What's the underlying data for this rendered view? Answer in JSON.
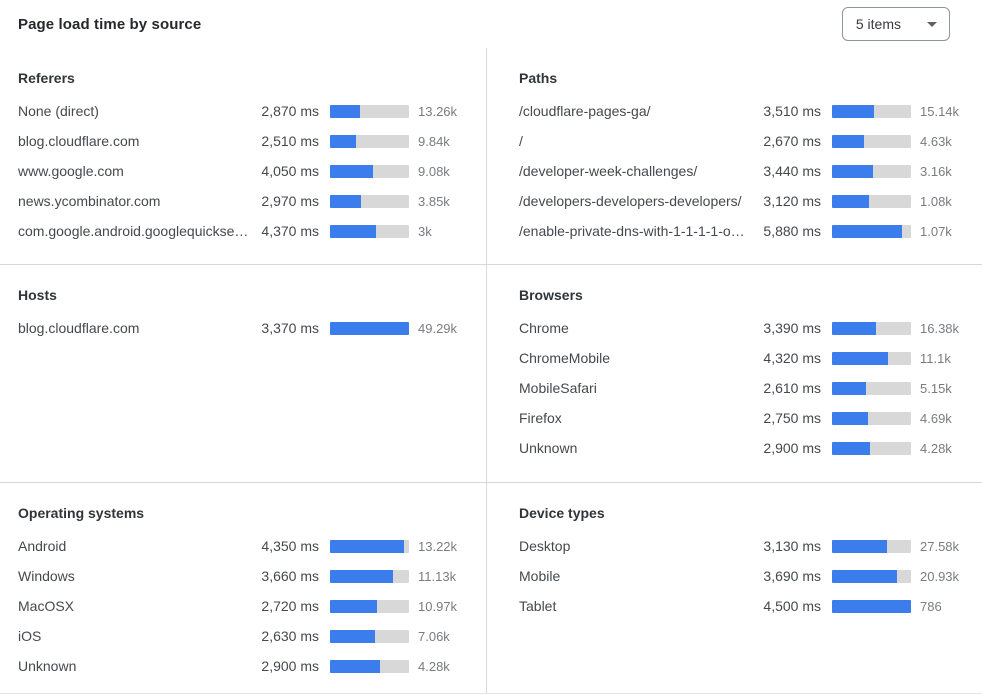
{
  "header": {
    "title": "Page load time by source",
    "items_selector": {
      "label": "5 items",
      "icon": "chevron-down"
    }
  },
  "colors": {
    "bar_fill": "#3c7dee",
    "bar_track": "#d8d8d8",
    "divider": "#d8d8d8"
  },
  "chart_data": {
    "type": "bar",
    "title": "Page load time by source",
    "unit": "ms",
    "orientation": "horizontal",
    "legend_position": "none",
    "panels": [
      {
        "title": "Referers",
        "bar_scale_ms": 7500,
        "rows": [
          {
            "label": "None (direct)",
            "ms": 2870,
            "ms_label": "2,870 ms",
            "count": "13.26k"
          },
          {
            "label": "blog.cloudflare.com",
            "ms": 2510,
            "ms_label": "2,510 ms",
            "count": "9.84k"
          },
          {
            "label": "www.google.com",
            "ms": 4050,
            "ms_label": "4,050 ms",
            "count": "9.08k"
          },
          {
            "label": "news.ycombinator.com",
            "ms": 2970,
            "ms_label": "2,970 ms",
            "count": "3.85k"
          },
          {
            "label": "com.google.android.googlequicksearc...",
            "ms": 4370,
            "ms_label": "4,370 ms",
            "count": "3k"
          }
        ]
      },
      {
        "title": "Paths",
        "bar_scale_ms": 6600,
        "rows": [
          {
            "label": "/cloudflare-pages-ga/",
            "ms": 3510,
            "ms_label": "3,510 ms",
            "count": "15.14k"
          },
          {
            "label": "/",
            "ms": 2670,
            "ms_label": "2,670 ms",
            "count": "4.63k"
          },
          {
            "label": "/developer-week-challenges/",
            "ms": 3440,
            "ms_label": "3,440 ms",
            "count": "3.16k"
          },
          {
            "label": "/developers-developers-developers/",
            "ms": 3120,
            "ms_label": "3,120 ms",
            "count": "1.08k"
          },
          {
            "label": "/enable-private-dns-with-1-1-1-1-on-...",
            "ms": 5880,
            "ms_label": "5,880 ms",
            "count": "1.07k"
          }
        ]
      },
      {
        "title": "Hosts",
        "bar_scale_ms": 3370,
        "rows": [
          {
            "label": "blog.cloudflare.com",
            "ms": 3370,
            "ms_label": "3,370 ms",
            "count": "49.29k"
          }
        ]
      },
      {
        "title": "Browsers",
        "bar_scale_ms": 6100,
        "rows": [
          {
            "label": "Chrome",
            "ms": 3390,
            "ms_label": "3,390 ms",
            "count": "16.38k"
          },
          {
            "label": "ChromeMobile",
            "ms": 4320,
            "ms_label": "4,320 ms",
            "count": "11.1k"
          },
          {
            "label": "MobileSafari",
            "ms": 2610,
            "ms_label": "2,610 ms",
            "count": "5.15k"
          },
          {
            "label": "Firefox",
            "ms": 2750,
            "ms_label": "2,750 ms",
            "count": "4.69k"
          },
          {
            "label": "Unknown",
            "ms": 2900,
            "ms_label": "2,900 ms",
            "count": "4.28k"
          }
        ]
      },
      {
        "title": "Operating systems",
        "bar_scale_ms": 4620,
        "rows": [
          {
            "label": "Android",
            "ms": 4350,
            "ms_label": "4,350 ms",
            "count": "13.22k"
          },
          {
            "label": "Windows",
            "ms": 3660,
            "ms_label": "3,660 ms",
            "count": "11.13k"
          },
          {
            "label": "MacOSX",
            "ms": 2720,
            "ms_label": "2,720 ms",
            "count": "10.97k"
          },
          {
            "label": "iOS",
            "ms": 2630,
            "ms_label": "2,630 ms",
            "count": "7.06k"
          },
          {
            "label": "Unknown",
            "ms": 2900,
            "ms_label": "2,900 ms",
            "count": "4.28k"
          }
        ]
      },
      {
        "title": "Device types",
        "bar_scale_ms": 4500,
        "rows": [
          {
            "label": "Desktop",
            "ms": 3130,
            "ms_label": "3,130 ms",
            "count": "27.58k"
          },
          {
            "label": "Mobile",
            "ms": 3690,
            "ms_label": "3,690 ms",
            "count": "20.93k"
          },
          {
            "label": "Tablet",
            "ms": 4500,
            "ms_label": "4,500 ms",
            "count": "786"
          }
        ]
      }
    ]
  }
}
